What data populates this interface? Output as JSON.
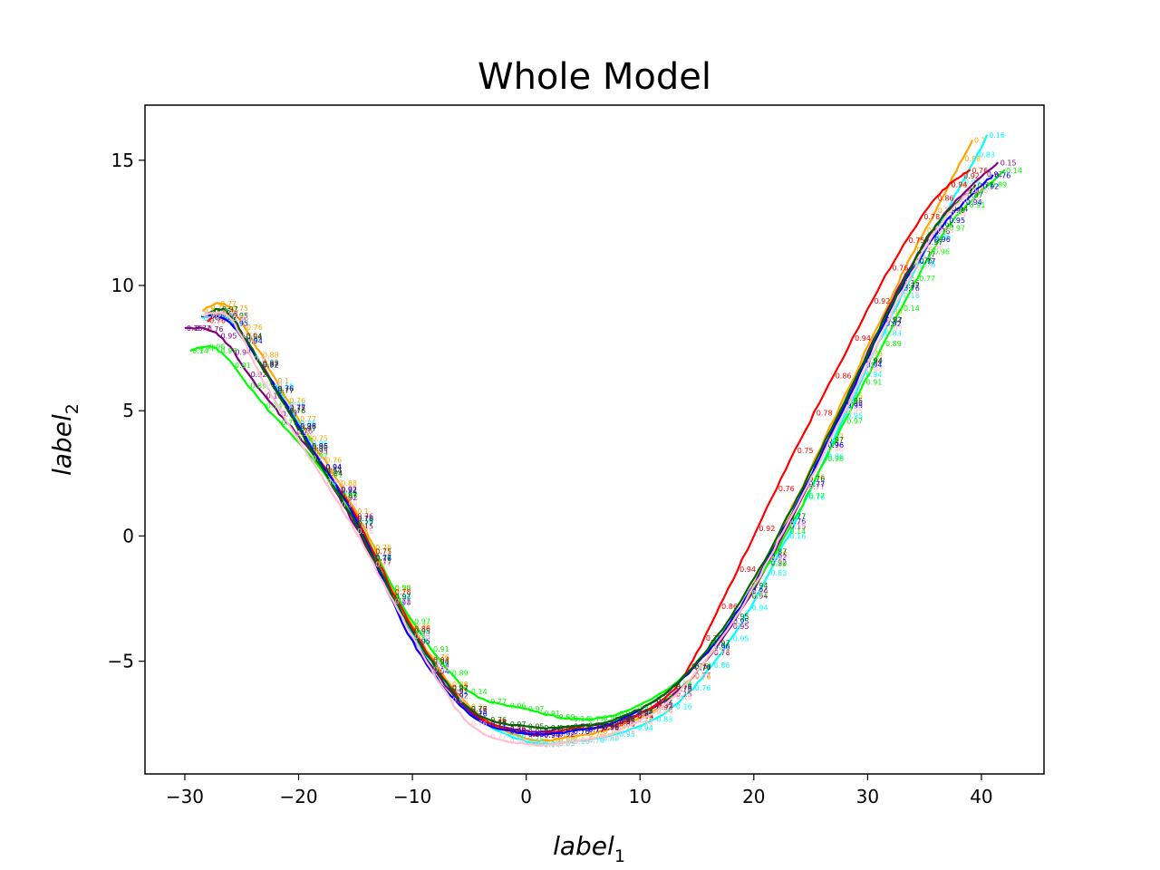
{
  "chart_data": {
    "type": "line",
    "title": "Whole Model",
    "xlabel": {
      "base": "label",
      "sub": "1"
    },
    "ylabel": {
      "base": "label",
      "sub": "2"
    },
    "xlim": [
      -33.5,
      45.5
    ],
    "ylim": [
      -9.5,
      17.2
    ],
    "xticks": [
      -30,
      -20,
      -10,
      0,
      10,
      20,
      30,
      40
    ],
    "yticks": [
      -5,
      0,
      5,
      10,
      15
    ],
    "xtick_labels": [
      "−30",
      "−20",
      "−10",
      "0",
      "10",
      "20",
      "30",
      "40"
    ],
    "ytick_labels": [
      "−5",
      "0",
      "5",
      "10",
      "15"
    ],
    "grid": false,
    "series": [
      {
        "color": "#ffa500",
        "x": [
          -28.5,
          -26,
          -22,
          -19,
          -15,
          -10,
          -5,
          0,
          4,
          8,
          13,
          18,
          23,
          28,
          33,
          36,
          39.2
        ],
        "y": [
          9.0,
          9.1,
          6.2,
          3.9,
          1.0,
          -3.6,
          -6.8,
          -8.1,
          -8.0,
          -7.6,
          -6.4,
          -3.5,
          0.8,
          5.6,
          10.4,
          13.0,
          15.8
        ],
        "labels": [
          "0.1",
          "0.76",
          "0.77",
          "0.75",
          "0.76",
          "0.88"
        ]
      },
      {
        "color": "#00ffff",
        "x": [
          -28.5,
          -26,
          -22,
          -19,
          -15,
          -10,
          -5,
          0,
          4,
          8,
          13,
          18,
          23,
          28,
          33,
          37,
          40.5
        ],
        "y": [
          8.7,
          8.6,
          6.0,
          3.7,
          0.6,
          -3.9,
          -7.0,
          -8.2,
          -8.2,
          -7.9,
          -6.8,
          -4.1,
          0.0,
          4.8,
          9.6,
          13.0,
          16.0
        ],
        "labels": [
          "0.16",
          "0.76",
          "0.86",
          "0.95",
          "0.94",
          "0.83"
        ]
      },
      {
        "color": "#800080",
        "x": [
          -30,
          -27,
          -23,
          -19,
          -15,
          -10,
          -5,
          0,
          4,
          8,
          13,
          18,
          23,
          28,
          33,
          37,
          41.5
        ],
        "y": [
          8.3,
          8.0,
          5.6,
          3.4,
          0.4,
          -4.0,
          -7.0,
          -7.8,
          -7.6,
          -7.4,
          -6.3,
          -3.6,
          0.4,
          5.3,
          10.1,
          13.0,
          14.9
        ],
        "labels": [
          "0.15",
          "0.77",
          "0.76",
          "0.95",
          "0.94",
          "0.92"
        ]
      },
      {
        "color": "#00ff00",
        "x": [
          -29.5,
          -27,
          -23,
          -19,
          -15,
          -10,
          -5,
          0,
          4,
          8,
          13,
          18,
          23,
          28,
          33,
          37,
          42
        ],
        "y": [
          7.4,
          7.4,
          5.2,
          3.2,
          0.7,
          -3.4,
          -6.2,
          -6.9,
          -7.3,
          -7.1,
          -5.9,
          -3.4,
          0.2,
          4.6,
          9.1,
          12.3,
          14.6
        ],
        "labels": [
          "0.14",
          "0.77",
          "0.96",
          "0.97",
          "0.91",
          "0.89"
        ]
      },
      {
        "color": "#ff0000",
        "x": [
          -28,
          -26,
          -22,
          -19,
          -15,
          -10,
          -5,
          0,
          4,
          8,
          13,
          17,
          22,
          27,
          32,
          36,
          39
        ],
        "y": [
          8.6,
          8.7,
          5.9,
          3.6,
          0.8,
          -3.7,
          -6.9,
          -7.9,
          -7.7,
          -7.5,
          -6.1,
          -2.8,
          1.9,
          6.4,
          10.7,
          13.5,
          14.6
        ],
        "labels": [
          "0.76",
          "0.75",
          "0.78",
          "0.86",
          "0.94",
          "0.92"
        ]
      },
      {
        "color": "#0000ff",
        "x": [
          -28.5,
          -26,
          -22,
          -19,
          -15,
          -10,
          -5,
          0,
          4,
          8,
          13,
          18,
          23,
          28,
          33,
          37,
          41
        ],
        "y": [
          8.8,
          8.5,
          5.9,
          3.6,
          0.7,
          -4.2,
          -7.1,
          -7.9,
          -7.8,
          -7.4,
          -6.0,
          -3.4,
          0.6,
          5.2,
          9.9,
          12.6,
          14.4
        ],
        "labels": [
          "0.76",
          "0.77",
          "0.96",
          "0.95",
          "0.94",
          "0.92"
        ]
      },
      {
        "color": "#006400",
        "x": [
          -28,
          -26,
          -22,
          -19,
          -15,
          -10,
          -5,
          0,
          4,
          8,
          13,
          18,
          23,
          28,
          33,
          36,
          39.5
        ],
        "y": [
          8.9,
          8.8,
          5.8,
          3.5,
          0.5,
          -3.8,
          -6.9,
          -7.6,
          -7.6,
          -7.3,
          -6.0,
          -3.2,
          0.8,
          5.4,
          10.0,
          12.4,
          14.0
        ],
        "labels": [
          "0.77",
          "0.76",
          "0.97",
          "0.95",
          "0.94",
          "0.87"
        ]
      },
      {
        "color": "#ffc0cb",
        "x": [
          -28.5,
          -26,
          -23,
          -19,
          -15,
          -10,
          -5,
          0,
          4,
          8,
          13,
          18,
          23,
          28,
          33,
          36,
          39
        ],
        "y": [
          8.8,
          8.7,
          6.1,
          3.1,
          0.2,
          -4.0,
          -7.5,
          -8.3,
          -8.2,
          -7.8,
          -6.4,
          -3.5,
          0.5,
          5.0,
          9.7,
          12.2,
          13.8
        ],
        "labels": [
          "0.76",
          "0.77",
          "0.96",
          "0.95",
          "0.94",
          "0.93"
        ]
      }
    ]
  }
}
